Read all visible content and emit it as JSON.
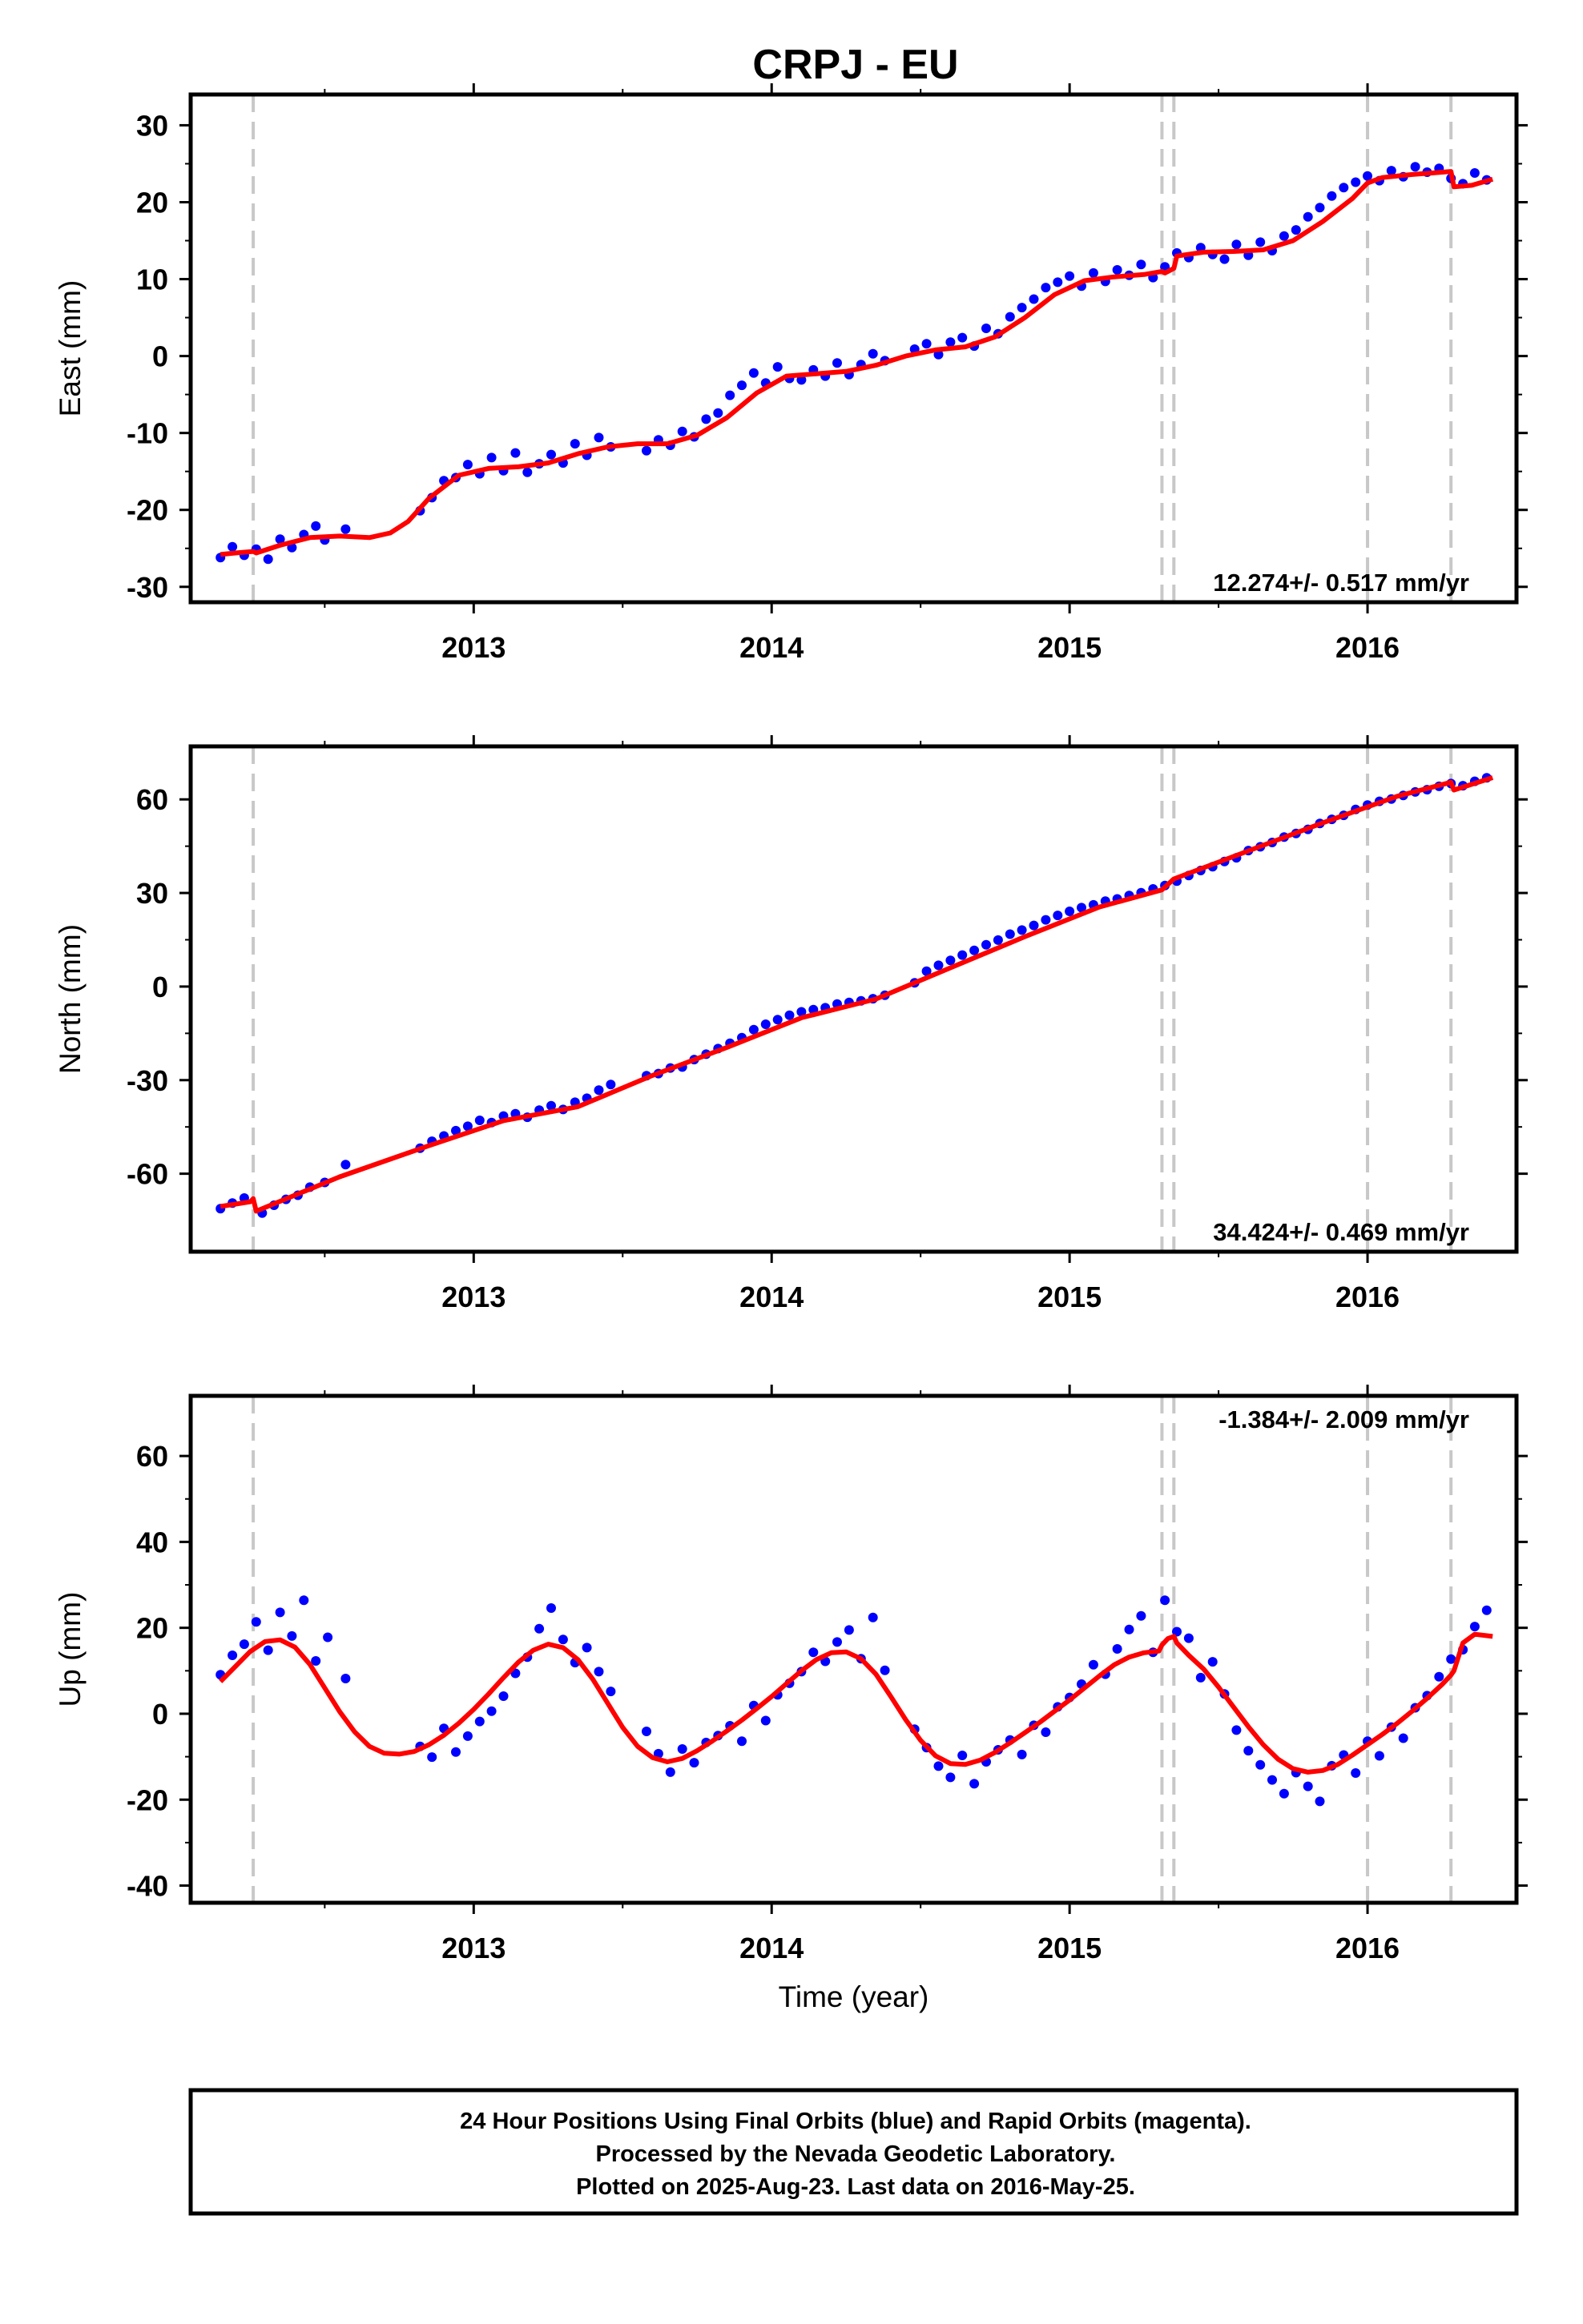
{
  "title": "CRPJ - EU",
  "footer": {
    "lines": [
      "24 Hour Positions Using Final Orbits (blue) and Rapid Orbits (magenta).",
      "Processed by the Nevada Geodetic Laboratory.",
      "Plotted on 2025-Aug-23. Last data on 2016-May-25."
    ]
  },
  "colors": {
    "data": "#0000ff",
    "model": "#ff0000",
    "break": "#c8c8c8",
    "axis": "#000000"
  },
  "chart_data": [
    {
      "type": "scatter",
      "name": "east",
      "ylabel": "East (mm)",
      "xlabel": "",
      "xlim": [
        2012.05,
        2016.5
      ],
      "ylim": [
        -32,
        34
      ],
      "yticks": [
        -30,
        -20,
        -10,
        0,
        10,
        20,
        30
      ],
      "xticks": [
        2013,
        2014,
        2015,
        2016
      ],
      "x_tick_labels": [
        "2013",
        "2014",
        "2015",
        "2016"
      ],
      "rate_text": "12.274+/- 0.517 mm/yr",
      "rate_position": "bottom-right",
      "breaks": [
        2012.26,
        2015.31,
        2015.35,
        2016.0,
        2016.28
      ],
      "model": {
        "x": [
          2012.15,
          2012.2,
          2012.26,
          2012.27,
          2012.35,
          2012.45,
          2012.55,
          2012.65,
          2012.72,
          2012.78,
          2012.85,
          2012.95,
          2013.05,
          2013.15,
          2013.25,
          2013.35,
          2013.45,
          2013.55,
          2013.65,
          2013.75,
          2013.85,
          2013.95,
          2014.05,
          2014.15,
          2014.25,
          2014.35,
          2014.45,
          2014.55,
          2014.65,
          2014.75,
          2014.85,
          2014.95,
          2015.05,
          2015.15,
          2015.25,
          2015.31,
          2015.32,
          2015.35,
          2015.36,
          2015.45,
          2015.55,
          2015.65,
          2015.75,
          2015.85,
          2015.95,
          2016.0,
          2016.05,
          2016.15,
          2016.28,
          2016.29,
          2016.35,
          2016.42
        ],
        "y": [
          -25.8,
          -25.6,
          -25.4,
          -25.6,
          -24.6,
          -23.6,
          -23.4,
          -23.6,
          -23.0,
          -21.5,
          -18.5,
          -15.5,
          -14.6,
          -14.4,
          -13.9,
          -12.7,
          -11.8,
          -11.4,
          -11.4,
          -10.3,
          -8.0,
          -4.8,
          -2.6,
          -2.3,
          -2.0,
          -1.2,
          0.0,
          0.8,
          1.2,
          2.5,
          5.0,
          8.0,
          9.8,
          10.3,
          10.6,
          11.0,
          10.8,
          11.4,
          13.0,
          13.5,
          13.6,
          13.8,
          15.0,
          17.5,
          20.5,
          22.5,
          23.2,
          23.6,
          24.0,
          22.0,
          22.2,
          23.0
        ]
      },
      "points": {
        "x": [
          2012.15,
          2012.19,
          2012.23,
          2012.27,
          2012.31,
          2012.35,
          2012.39,
          2012.43,
          2012.47,
          2012.5,
          2012.57,
          2012.82,
          2012.86,
          2012.9,
          2012.94,
          2012.98,
          2013.02,
          2013.06,
          2013.1,
          2013.14,
          2013.18,
          2013.22,
          2013.26,
          2013.3,
          2013.34,
          2013.38,
          2013.42,
          2013.46,
          2013.58,
          2013.62,
          2013.66,
          2013.7,
          2013.74,
          2013.78,
          2013.82,
          2013.86,
          2013.9,
          2013.94,
          2013.98,
          2014.02,
          2014.06,
          2014.1,
          2014.14,
          2014.18,
          2014.22,
          2014.26,
          2014.3,
          2014.34,
          2014.38,
          2014.48,
          2014.52,
          2014.56,
          2014.6,
          2014.64,
          2014.68,
          2014.72,
          2014.76,
          2014.8,
          2014.84,
          2014.88,
          2014.92,
          2014.96,
          2015.0,
          2015.04,
          2015.08,
          2015.12,
          2015.16,
          2015.2,
          2015.24,
          2015.28,
          2015.32,
          2015.36,
          2015.4,
          2015.44,
          2015.48,
          2015.52,
          2015.56,
          2015.6,
          2015.64,
          2015.68,
          2015.72,
          2015.76,
          2015.8,
          2015.84,
          2015.88,
          2015.92,
          2015.96,
          2016.0,
          2016.04,
          2016.08,
          2016.12,
          2016.16,
          2016.2,
          2016.24,
          2016.28,
          2016.32,
          2016.36,
          2016.4
        ],
        "y": [
          -26.2,
          -24.8,
          -25.9,
          -25.1,
          -26.4,
          -23.8,
          -24.9,
          -23.2,
          -22.1,
          -23.9,
          -22.5,
          -20.1,
          -18.4,
          -16.2,
          -15.8,
          -14.1,
          -15.3,
          -13.2,
          -14.9,
          -12.6,
          -15.1,
          -14.0,
          -12.8,
          -13.9,
          -11.4,
          -12.9,
          -10.6,
          -11.8,
          -12.3,
          -10.9,
          -11.6,
          -9.8,
          -10.5,
          -8.2,
          -7.4,
          -5.1,
          -3.8,
          -2.2,
          -3.5,
          -1.4,
          -2.9,
          -3.1,
          -1.8,
          -2.6,
          -0.9,
          -2.4,
          -1.1,
          0.3,
          -0.6,
          0.9,
          1.6,
          0.2,
          1.8,
          2.4,
          1.3,
          3.6,
          2.9,
          5.1,
          6.3,
          7.4,
          8.9,
          9.6,
          10.4,
          9.1,
          10.8,
          9.7,
          11.2,
          10.5,
          11.9,
          10.2,
          11.6,
          13.4,
          12.8,
          14.1,
          13.2,
          12.6,
          14.5,
          13.1,
          14.8,
          13.7,
          15.6,
          16.4,
          18.1,
          19.3,
          20.8,
          21.9,
          22.6,
          23.4,
          22.8,
          24.1,
          23.3,
          24.6,
          23.9,
          24.4,
          23.1,
          22.4,
          23.8,
          22.9
        ]
      }
    },
    {
      "type": "scatter",
      "name": "north",
      "ylabel": "North (mm)",
      "xlabel": "",
      "xlim": [
        2012.05,
        2016.5
      ],
      "ylim": [
        -85,
        77
      ],
      "yticks": [
        -60,
        -30,
        0,
        30,
        60
      ],
      "xticks": [
        2013,
        2014,
        2015,
        2016
      ],
      "x_tick_labels": [
        "2013",
        "2014",
        "2015",
        "2016"
      ],
      "rate_text": "34.424+/- 0.469 mm/yr",
      "rate_position": "bottom-right",
      "breaks": [
        2012.26,
        2015.31,
        2015.35,
        2016.0,
        2016.28
      ],
      "model": {
        "x": [
          2012.15,
          2012.25,
          2012.26,
          2012.27,
          2012.55,
          2012.85,
          2013.1,
          2013.35,
          2013.6,
          2013.85,
          2014.1,
          2014.35,
          2014.6,
          2014.85,
          2015.1,
          2015.31,
          2015.35,
          2015.6,
          2015.85,
          2016.1,
          2016.28,
          2016.29,
          2016.42
        ],
        "y": [
          -70.5,
          -69.0,
          -68.0,
          -72.0,
          -61.0,
          -51.0,
          -43.0,
          -38.5,
          -28.5,
          -19.5,
          -10.0,
          -4.0,
          6.0,
          16.0,
          25.5,
          31.0,
          34.5,
          43.5,
          52.5,
          61.0,
          65.5,
          63.0,
          67.0
        ]
      },
      "points": {
        "x": [
          2012.15,
          2012.19,
          2012.23,
          2012.29,
          2012.33,
          2012.37,
          2012.41,
          2012.45,
          2012.5,
          2012.57,
          2012.82,
          2012.86,
          2012.9,
          2012.94,
          2012.98,
          2013.02,
          2013.06,
          2013.1,
          2013.14,
          2013.18,
          2013.22,
          2013.26,
          2013.3,
          2013.34,
          2013.38,
          2013.42,
          2013.46,
          2013.58,
          2013.62,
          2013.66,
          2013.7,
          2013.74,
          2013.78,
          2013.82,
          2013.86,
          2013.9,
          2013.94,
          2013.98,
          2014.02,
          2014.06,
          2014.1,
          2014.14,
          2014.18,
          2014.22,
          2014.26,
          2014.3,
          2014.34,
          2014.38,
          2014.48,
          2014.52,
          2014.56,
          2014.6,
          2014.64,
          2014.68,
          2014.72,
          2014.76,
          2014.8,
          2014.84,
          2014.88,
          2014.92,
          2014.96,
          2015.0,
          2015.04,
          2015.08,
          2015.12,
          2015.16,
          2015.2,
          2015.24,
          2015.28,
          2015.32,
          2015.36,
          2015.4,
          2015.44,
          2015.48,
          2015.52,
          2015.56,
          2015.6,
          2015.64,
          2015.68,
          2015.72,
          2015.76,
          2015.8,
          2015.84,
          2015.88,
          2015.92,
          2015.96,
          2016.0,
          2016.04,
          2016.08,
          2016.12,
          2016.16,
          2016.2,
          2016.24,
          2016.28,
          2016.32,
          2016.36,
          2016.4
        ],
        "y": [
          -71.2,
          -69.4,
          -67.8,
          -72.6,
          -70.1,
          -68.2,
          -66.9,
          -64.3,
          -62.8,
          -57.1,
          -51.8,
          -49.6,
          -47.9,
          -46.2,
          -44.8,
          -42.9,
          -43.6,
          -41.5,
          -40.8,
          -41.9,
          -39.6,
          -38.2,
          -39.4,
          -37.1,
          -35.8,
          -33.2,
          -31.4,
          -28.6,
          -27.9,
          -26.1,
          -25.8,
          -23.4,
          -21.7,
          -19.9,
          -18.2,
          -16.4,
          -13.8,
          -12.1,
          -10.6,
          -9.2,
          -8.1,
          -7.4,
          -6.8,
          -5.6,
          -5.1,
          -4.6,
          -3.9,
          -2.8,
          1.2,
          4.9,
          6.8,
          8.4,
          10.1,
          11.6,
          13.4,
          14.9,
          16.8,
          18.1,
          19.6,
          21.4,
          22.8,
          24.1,
          25.3,
          26.2,
          27.4,
          28.1,
          29.2,
          30.1,
          31.3,
          32.4,
          33.8,
          35.6,
          37.2,
          38.4,
          40.1,
          41.3,
          43.6,
          44.8,
          46.2,
          47.9,
          49.1,
          50.4,
          52.3,
          53.6,
          54.9,
          56.8,
          58.2,
          59.4,
          60.1,
          61.3,
          62.4,
          63.1,
          64.2,
          65.1,
          64.4,
          65.8,
          66.9
        ]
      }
    },
    {
      "type": "scatter",
      "name": "up",
      "ylabel": "Up (mm)",
      "xlabel": "Time (year)",
      "xlim": [
        2012.05,
        2016.5
      ],
      "ylim": [
        -44,
        74
      ],
      "yticks": [
        -40,
        -20,
        0,
        20,
        40,
        60
      ],
      "xticks": [
        2013,
        2014,
        2015,
        2016
      ],
      "x_tick_labels": [
        "2013",
        "2014",
        "2015",
        "2016"
      ],
      "rate_text": "-1.384+/- 2.009 mm/yr",
      "rate_position": "top-right",
      "breaks": [
        2012.26,
        2015.31,
        2015.35,
        2016.0,
        2016.28
      ],
      "model": {
        "x": [
          2012.15,
          2012.2,
          2012.25,
          2012.3,
          2012.35,
          2012.4,
          2012.45,
          2012.5,
          2012.55,
          2012.6,
          2012.65,
          2012.7,
          2012.75,
          2012.8,
          2012.85,
          2012.9,
          2012.95,
          2013.0,
          2013.05,
          2013.1,
          2013.15,
          2013.2,
          2013.25,
          2013.3,
          2013.35,
          2013.4,
          2013.45,
          2013.5,
          2013.55,
          2013.6,
          2013.65,
          2013.7,
          2013.75,
          2013.8,
          2013.85,
          2013.9,
          2013.95,
          2014.0,
          2014.05,
          2014.1,
          2014.15,
          2014.2,
          2014.25,
          2014.3,
          2014.35,
          2014.4,
          2014.45,
          2014.5,
          2014.55,
          2014.6,
          2014.65,
          2014.7,
          2014.75,
          2014.8,
          2014.85,
          2014.9,
          2014.95,
          2015.0,
          2015.05,
          2015.1,
          2015.15,
          2015.2,
          2015.25,
          2015.3,
          2015.31,
          2015.33,
          2015.35,
          2015.36,
          2015.4,
          2015.45,
          2015.5,
          2015.55,
          2015.6,
          2015.65,
          2015.7,
          2015.75,
          2015.8,
          2015.85,
          2015.9,
          2015.95,
          2016.0,
          2016.05,
          2016.1,
          2016.15,
          2016.2,
          2016.25,
          2016.28,
          2016.29,
          2016.32,
          2016.36,
          2016.42
        ],
        "y": [
          7.5,
          11.0,
          14.5,
          16.8,
          17.2,
          15.5,
          11.5,
          6.0,
          0.5,
          -4.2,
          -7.6,
          -9.2,
          -9.4,
          -8.8,
          -7.2,
          -5.0,
          -2.2,
          1.0,
          4.6,
          8.4,
          12.0,
          14.8,
          16.2,
          15.4,
          12.6,
          8.0,
          2.4,
          -3.2,
          -7.6,
          -10.2,
          -11.2,
          -10.4,
          -8.6,
          -6.4,
          -4.0,
          -1.5,
          1.2,
          4.0,
          7.0,
          10.0,
          12.6,
          14.2,
          14.4,
          12.8,
          9.2,
          4.0,
          -1.4,
          -6.2,
          -9.8,
          -11.6,
          -11.8,
          -10.8,
          -9.0,
          -6.8,
          -4.4,
          -2.0,
          0.6,
          3.2,
          6.0,
          8.8,
          11.4,
          13.2,
          14.2,
          14.6,
          16.0,
          17.5,
          18.0,
          16.5,
          13.6,
          10.4,
          6.2,
          1.6,
          -3.0,
          -7.2,
          -10.6,
          -12.8,
          -13.6,
          -13.2,
          -11.8,
          -9.6,
          -7.2,
          -4.8,
          -2.2,
          0.6,
          3.6,
          6.8,
          9.0,
          10.0,
          16.5,
          18.5,
          18.0
        ]
      },
      "points": {
        "x": [
          2012.15,
          2012.19,
          2012.23,
          2012.27,
          2012.31,
          2012.35,
          2012.39,
          2012.43,
          2012.47,
          2012.51,
          2012.57,
          2012.82,
          2012.86,
          2012.9,
          2012.94,
          2012.98,
          2013.02,
          2013.06,
          2013.1,
          2013.14,
          2013.18,
          2013.22,
          2013.26,
          2013.3,
          2013.34,
          2013.38,
          2013.42,
          2013.46,
          2013.58,
          2013.62,
          2013.66,
          2013.7,
          2013.74,
          2013.78,
          2013.82,
          2013.86,
          2013.9,
          2013.94,
          2013.98,
          2014.02,
          2014.06,
          2014.1,
          2014.14,
          2014.18,
          2014.22,
          2014.26,
          2014.3,
          2014.34,
          2014.38,
          2014.48,
          2014.52,
          2014.56,
          2014.6,
          2014.64,
          2014.68,
          2014.72,
          2014.76,
          2014.8,
          2014.84,
          2014.88,
          2014.92,
          2014.96,
          2015.0,
          2015.04,
          2015.08,
          2015.12,
          2015.16,
          2015.2,
          2015.24,
          2015.28,
          2015.32,
          2015.36,
          2015.4,
          2015.44,
          2015.48,
          2015.52,
          2015.56,
          2015.6,
          2015.64,
          2015.68,
          2015.72,
          2015.76,
          2015.8,
          2015.84,
          2015.88,
          2015.92,
          2015.96,
          2016.0,
          2016.04,
          2016.08,
          2016.12,
          2016.16,
          2016.2,
          2016.24,
          2016.28,
          2016.32,
          2016.36,
          2016.4
        ],
        "y": [
          9.1,
          13.6,
          16.2,
          21.4,
          14.8,
          23.6,
          18.1,
          26.4,
          12.3,
          17.8,
          8.2,
          -7.6,
          -10.1,
          -3.4,
          -8.9,
          -5.2,
          -1.8,
          0.6,
          4.1,
          9.4,
          13.2,
          19.8,
          24.6,
          17.3,
          11.9,
          15.4,
          9.8,
          5.2,
          -4.1,
          -9.3,
          -13.6,
          -8.2,
          -11.4,
          -6.7,
          -5.1,
          -2.8,
          -6.4,
          1.9,
          -1.6,
          4.4,
          7.1,
          9.8,
          14.3,
          12.2,
          16.7,
          19.5,
          12.8,
          22.4,
          10.1,
          -3.6,
          -7.9,
          -12.2,
          -14.8,
          -9.7,
          -16.3,
          -11.2,
          -8.4,
          -6.1,
          -9.5,
          -2.7,
          -4.3,
          1.6,
          3.8,
          6.9,
          11.4,
          9.2,
          15.1,
          19.6,
          22.8,
          14.3,
          26.4,
          19.1,
          17.6,
          8.4,
          12.1,
          4.6,
          -3.8,
          -8.6,
          -11.9,
          -15.4,
          -18.6,
          -13.7,
          -16.9,
          -20.4,
          -12.1,
          -9.6,
          -13.8,
          -6.4,
          -9.8,
          -3.1,
          -5.7,
          1.4,
          4.2,
          8.6,
          12.7,
          14.9,
          20.3,
          24.1
        ]
      }
    }
  ]
}
